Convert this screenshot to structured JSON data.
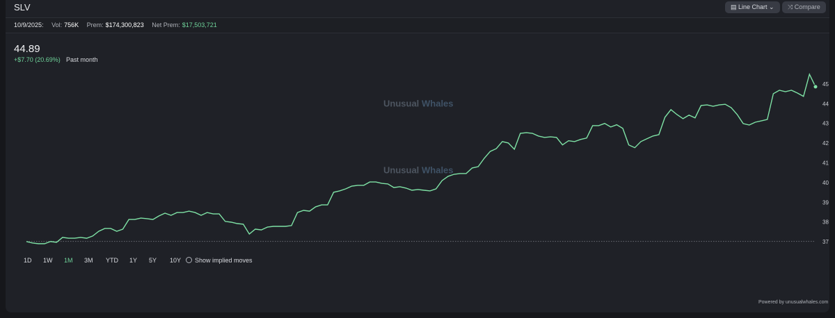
{
  "header": {
    "symbol": "SLV",
    "buttons": [
      "Line Chart",
      "Compare"
    ]
  },
  "stats": {
    "date": "10/9/2025:",
    "vol_label": "Vol:",
    "vol": "756K",
    "prem_label": "Prem:",
    "prem": "$174,300,823",
    "net_prem_label": "Net Prem:",
    "net_prem": "$17,503,721"
  },
  "quote": {
    "price": "44.89",
    "change": "+$7.70 (20.69%)",
    "period": "Past month"
  },
  "watermark": [
    "Unusual",
    "Whales"
  ],
  "chart_data": {
    "type": "line",
    "color": "#7fe3a6",
    "baseline": 37.05,
    "ylim": [
      36.8,
      45.75
    ],
    "yticks": [
      37,
      38,
      39,
      40,
      41,
      42,
      43,
      44,
      45
    ],
    "values": [
      37.04,
      36.97,
      36.93,
      36.93,
      37.04,
      37.0,
      37.25,
      37.21,
      37.21,
      37.25,
      37.21,
      37.32,
      37.56,
      37.7,
      37.7,
      37.56,
      37.67,
      38.16,
      38.16,
      38.23,
      38.2,
      38.16,
      38.34,
      38.48,
      38.37,
      38.51,
      38.51,
      38.58,
      38.51,
      38.37,
      38.51,
      38.44,
      38.44,
      38.06,
      38.02,
      37.95,
      37.92,
      37.42,
      37.67,
      37.63,
      37.77,
      37.81,
      37.81,
      37.81,
      37.85,
      38.51,
      38.62,
      38.58,
      38.8,
      38.9,
      38.9,
      39.54,
      39.61,
      39.71,
      39.85,
      39.89,
      39.89,
      40.06,
      40.06,
      39.99,
      39.96,
      39.78,
      39.82,
      39.75,
      39.64,
      39.68,
      39.64,
      39.61,
      39.71,
      40.13,
      40.35,
      40.45,
      40.49,
      40.49,
      40.77,
      40.84,
      41.26,
      41.61,
      41.75,
      42.11,
      42.04,
      41.72,
      42.53,
      42.56,
      42.53,
      42.39,
      42.32,
      42.35,
      42.32,
      41.94,
      42.15,
      42.11,
      42.22,
      42.29,
      42.92,
      42.92,
      43.03,
      42.85,
      42.96,
      42.78,
      41.94,
      41.8,
      42.11,
      42.25,
      42.39,
      42.46,
      43.34,
      43.73,
      43.48,
      43.27,
      43.45,
      43.31,
      43.94,
      43.97,
      43.9,
      43.97,
      44.0,
      43.83,
      43.48,
      43.02,
      42.95,
      43.09,
      43.16,
      43.23,
      44.54,
      44.71,
      44.64,
      44.71,
      44.57,
      44.4,
      45.52,
      44.89
    ]
  },
  "range_buttons": [
    "1D",
    "1W",
    "1M",
    "3M",
    "YTD",
    "1Y",
    "5Y",
    "10Y"
  ],
  "active_range": "1M",
  "implied_moves": "Show implied moves",
  "footer": "Powered by unusualwhales.com"
}
